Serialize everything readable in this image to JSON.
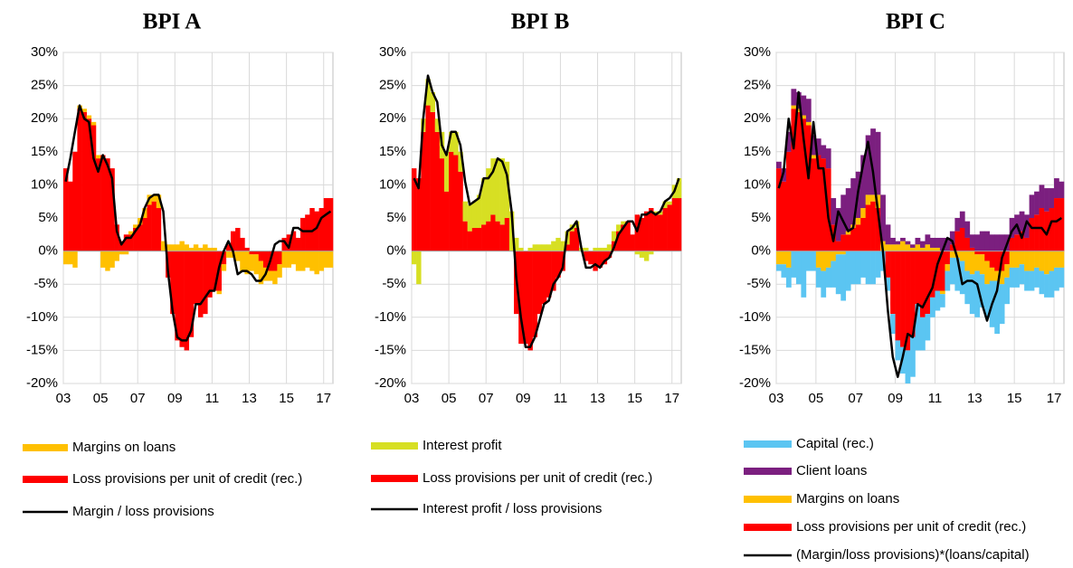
{
  "chart_data": [
    {
      "type": "bar",
      "title": "BPI A",
      "categories": [
        "03",
        null,
        null,
        null,
        null,
        null,
        null,
        null,
        "05",
        null,
        null,
        null,
        null,
        null,
        null,
        null,
        "07",
        null,
        null,
        null,
        null,
        null,
        null,
        null,
        "09",
        null,
        null,
        null,
        null,
        null,
        null,
        null,
        "11",
        null,
        null,
        null,
        null,
        null,
        null,
        null,
        "13",
        null,
        null,
        null,
        null,
        null,
        null,
        null,
        "15",
        null,
        null,
        null,
        null,
        null,
        null,
        null,
        "17",
        null
      ],
      "ylim": [
        -20,
        30
      ],
      "yticks": [
        {
          "value": -20,
          "label": "-20%"
        },
        {
          "value": -15,
          "label": "-15%"
        },
        {
          "value": -10,
          "label": "-10%"
        },
        {
          "value": -5,
          "label": "-5%"
        },
        {
          "value": 0,
          "label": "0%"
        },
        {
          "value": 5,
          "label": "5%"
        },
        {
          "value": 10,
          "label": "10%"
        },
        {
          "value": 15,
          "label": "15%"
        },
        {
          "value": 20,
          "label": "20%"
        },
        {
          "value": 25,
          "label": "25%"
        },
        {
          "value": 30,
          "label": "30%"
        }
      ],
      "grid": true,
      "series": [
        {
          "name": "Margins on loans",
          "color": "#ffc000",
          "values": [
            -2,
            -2,
            -2.5,
            0.5,
            0.5,
            0.5,
            0.5,
            0.5,
            -2.5,
            -3,
            -2.5,
            -1.5,
            -0.5,
            -0.5,
            0.5,
            0.5,
            1,
            1.5,
            1.5,
            1,
            2,
            1.5,
            1,
            1,
            1,
            1.5,
            1,
            0.5,
            1,
            0.5,
            1,
            0.5,
            0.5,
            -0.5,
            -1,
            -1,
            -1,
            -1.5,
            -3,
            -3.5,
            -2.5,
            -3,
            -3.5,
            -2,
            -1.5,
            -2,
            -2,
            -2.5,
            -2.5,
            -2,
            -3,
            -3,
            -2.5,
            -3,
            -3.5,
            -3,
            -2.5,
            -2.5
          ]
        },
        {
          "name": "Loss provisions per unit of credit (rec.)",
          "color": "#ff0000",
          "values": [
            12.5,
            10.5,
            15,
            21.5,
            21,
            20,
            19,
            14,
            14.5,
            14,
            12.5,
            4,
            1.5,
            2.5,
            2.5,
            3.5,
            4,
            5,
            7,
            7.5,
            6.5,
            0,
            -4,
            -9.5,
            -13.5,
            -14.5,
            -15,
            -13,
            -8,
            -10,
            -9.5,
            -7,
            -6,
            -6,
            -2,
            1,
            3,
            3.5,
            2,
            0.5,
            -0.5,
            -0.5,
            -1.5,
            -2.5,
            -3,
            -3,
            -2,
            2,
            2.5,
            3,
            2,
            5,
            5.5,
            6.5,
            6,
            6.5,
            8,
            8
          ]
        },
        {
          "name": "Margin / loss provisions",
          "type": "line",
          "color": "#000000",
          "values": [
            10.5,
            14,
            18,
            22,
            20,
            19.5,
            14,
            12,
            14.5,
            13,
            11,
            3,
            1,
            2,
            2,
            3,
            4,
            6.5,
            8,
            8.5,
            8.5,
            6,
            -3,
            -9,
            -13,
            -13.5,
            -13.5,
            -12,
            -8,
            -8,
            -7,
            -6,
            -6,
            -2.5,
            0,
            1.5,
            0,
            -3.5,
            -3,
            -3,
            -3.5,
            -4.5,
            -4.5,
            -3.5,
            -1.5,
            1,
            1.5,
            1.5,
            0.5,
            3.5,
            3.5,
            3,
            3,
            3,
            3.5,
            5,
            5.5,
            6
          ]
        }
      ]
    },
    {
      "type": "bar",
      "title": "BPI B",
      "categories": [
        "03",
        null,
        null,
        null,
        null,
        null,
        null,
        null,
        "05",
        null,
        null,
        null,
        null,
        null,
        null,
        null,
        "07",
        null,
        null,
        null,
        null,
        null,
        null,
        null,
        "09",
        null,
        null,
        null,
        null,
        null,
        null,
        null,
        "11",
        null,
        null,
        null,
        null,
        null,
        null,
        null,
        "13",
        null,
        null,
        null,
        null,
        null,
        null,
        null,
        "15",
        null,
        null,
        null,
        null,
        null,
        null,
        null,
        "17",
        null
      ],
      "ylim": [
        -20,
        30
      ],
      "yticks": [
        {
          "value": -20,
          "label": "-20%"
        },
        {
          "value": -15,
          "label": "-15%"
        },
        {
          "value": -10,
          "label": "-10%"
        },
        {
          "value": -5,
          "label": "-5%"
        },
        {
          "value": 0,
          "label": "0%"
        },
        {
          "value": 5,
          "label": "5%"
        },
        {
          "value": 10,
          "label": "10%"
        },
        {
          "value": 15,
          "label": "15%"
        },
        {
          "value": 20,
          "label": "20%"
        },
        {
          "value": 25,
          "label": "25%"
        },
        {
          "value": 30,
          "label": "30%"
        }
      ],
      "grid": true,
      "series": [
        {
          "name": "Interest profit",
          "color": "#d7df23",
          "values": [
            -2,
            -5,
            2,
            4,
            3,
            2,
            4,
            6,
            3,
            3.5,
            3,
            3,
            4,
            4,
            5,
            7,
            8,
            8.5,
            9.5,
            10,
            8.5,
            6,
            2,
            0.5,
            0,
            0.5,
            1,
            1,
            1,
            1,
            1.5,
            2,
            1.5,
            2,
            1,
            1,
            0.5,
            0.5,
            0,
            0.5,
            0.5,
            0.5,
            1,
            1.5,
            1,
            0.5,
            0,
            0,
            -0.5,
            -1,
            -1.5,
            -0.5,
            0.5,
            0.5,
            1,
            0.5,
            2,
            3
          ]
        },
        {
          "name": "Loss provisions per unit of credit (rec.)",
          "color": "#ff0000",
          "values": [
            12.5,
            11,
            18,
            22,
            21,
            18,
            14,
            9,
            15,
            14.5,
            12,
            4.5,
            3,
            3.5,
            3.5,
            4,
            4.5,
            5.5,
            4.5,
            4,
            5,
            0,
            -9.5,
            -14,
            -14,
            -15,
            -13,
            -9.5,
            -8,
            -7,
            -6,
            -4,
            -3,
            1,
            3,
            3.5,
            0,
            -1.5,
            -2,
            -3,
            -2.5,
            -2,
            -1,
            1.5,
            3,
            4,
            4.5,
            2.5,
            5.5,
            5,
            6,
            6.5,
            5.5,
            5.5,
            6.5,
            7,
            8,
            8
          ]
        },
        {
          "name": "Interest profit / loss provisions",
          "type": "line",
          "color": "#000000",
          "values": [
            11,
            9.5,
            20,
            26.5,
            24,
            22.5,
            16,
            14.5,
            18,
            18,
            16,
            10.5,
            7,
            7.5,
            8,
            11,
            11,
            12,
            14,
            13.5,
            11.5,
            6,
            -4,
            -10,
            -14.5,
            -14.5,
            -13,
            -10.5,
            -8,
            -7.5,
            -5,
            -4,
            -2.5,
            3,
            3.5,
            4.5,
            0.5,
            -2.5,
            -2.5,
            -2,
            -2.5,
            -1.5,
            -1,
            0.5,
            2.5,
            3.5,
            4.5,
            4.5,
            3,
            5.5,
            5.5,
            6,
            5.5,
            6,
            7.5,
            8,
            9,
            11
          ]
        }
      ]
    },
    {
      "type": "bar",
      "title": "BPI C",
      "categories": [
        "03",
        null,
        null,
        null,
        null,
        null,
        null,
        null,
        "05",
        null,
        null,
        null,
        null,
        null,
        null,
        null,
        "07",
        null,
        null,
        null,
        null,
        null,
        null,
        null,
        "09",
        null,
        null,
        null,
        null,
        null,
        null,
        null,
        "11",
        null,
        null,
        null,
        null,
        null,
        null,
        null,
        "13",
        null,
        null,
        null,
        null,
        null,
        null,
        null,
        "15",
        null,
        null,
        null,
        null,
        null,
        null,
        null,
        "17",
        null
      ],
      "ylim": [
        -20,
        30
      ],
      "yticks": [
        {
          "value": -20,
          "label": "-20%"
        },
        {
          "value": -15,
          "label": "-15%"
        },
        {
          "value": -10,
          "label": "-10%"
        },
        {
          "value": -5,
          "label": "-5%"
        },
        {
          "value": 0,
          "label": "0%"
        },
        {
          "value": 5,
          "label": "5%"
        },
        {
          "value": 10,
          "label": "10%"
        },
        {
          "value": 15,
          "label": "15%"
        },
        {
          "value": 20,
          "label": "20%"
        },
        {
          "value": 25,
          "label": "25%"
        },
        {
          "value": 30,
          "label": "30%"
        }
      ],
      "grid": true,
      "series": [
        {
          "name": "Capital (rec.)",
          "color": "#5bc5f2",
          "values": [
            -1,
            -2,
            -3,
            -4,
            -5,
            -7,
            -3,
            -3,
            -3,
            -4,
            -3,
            -4,
            -6,
            -7,
            -6,
            -5,
            -5,
            -4,
            -5,
            -5,
            -4,
            -3,
            -2,
            -3,
            -3,
            -4,
            -5,
            -6,
            -7,
            -5,
            -4,
            -3,
            -3,
            -2,
            -3,
            -4,
            -5,
            -5,
            -5,
            -6,
            -7,
            -5,
            -5,
            -7,
            -8,
            -6,
            -4,
            -3,
            -3,
            -3,
            -3,
            -3,
            -3,
            -3.5,
            -3.5,
            -4,
            -3.5,
            -3
          ]
        },
        {
          "name": "Client loans",
          "color": "#7b1f7f",
          "values": [
            1,
            2,
            3,
            2.5,
            2.5,
            3,
            3.5,
            3,
            2.5,
            2,
            3,
            4,
            5,
            6,
            6.5,
            7,
            7,
            8,
            9,
            10,
            9.5,
            7,
            3,
            1,
            0.5,
            0.5,
            0.5,
            0.5,
            1,
            1,
            1.5,
            1.5,
            1.5,
            2,
            2,
            2,
            2,
            2.5,
            2.5,
            2,
            2.5,
            3,
            3,
            2.5,
            2.5,
            2.5,
            2.5,
            3,
            3,
            3,
            3.5,
            3.5,
            3.5,
            3.5,
            3.5,
            3,
            3,
            2.5
          ]
        },
        {
          "name": "Margins on loans",
          "color": "#ffc000",
          "values": [
            -2,
            -2,
            -2.5,
            0.5,
            0.5,
            0.5,
            0.5,
            0.5,
            -2.5,
            -3,
            -2.5,
            -1.5,
            -0.5,
            -0.5,
            0.5,
            0.5,
            1,
            1.5,
            1.5,
            1,
            2,
            1.5,
            1,
            1,
            1,
            1.5,
            1,
            0.5,
            1,
            0.5,
            1,
            0.5,
            0.5,
            -0.5,
            -1,
            -1,
            -1,
            -1.5,
            -3,
            -3.5,
            -2.5,
            -3,
            -3.5,
            -2,
            -1.5,
            -2,
            -2,
            -2.5,
            -2.5,
            -2,
            -3,
            -3,
            -2.5,
            -3,
            -3.5,
            -3,
            -2.5,
            -2.5
          ]
        },
        {
          "name": "Loss provisions per unit of credit (rec.)",
          "color": "#ff0000",
          "values": [
            12.5,
            10.5,
            15,
            21.5,
            21,
            20,
            19,
            14,
            14.5,
            14,
            12.5,
            4,
            1.5,
            2.5,
            2.5,
            3.5,
            4,
            5,
            7,
            7.5,
            6.5,
            0,
            -4,
            -9.5,
            -13.5,
            -14.5,
            -15,
            -13,
            -8,
            -10,
            -9.5,
            -7,
            -6,
            -6,
            -2,
            1,
            3,
            3.5,
            2,
            0.5,
            -0.5,
            -0.5,
            -1.5,
            -2.5,
            -3,
            -3,
            -2,
            2,
            2.5,
            3,
            2,
            5,
            5.5,
            6.5,
            6,
            6.5,
            8,
            8
          ]
        },
        {
          "name": "(Margin/loss provisions)*(loans/capital)",
          "type": "line",
          "color": "#000000",
          "values": [
            9.5,
            12,
            20,
            15.5,
            24,
            17,
            11,
            19.5,
            12.5,
            12.5,
            5,
            1.5,
            6,
            4.5,
            3,
            3.5,
            9,
            13,
            16.5,
            12,
            6,
            0,
            -9,
            -16,
            -19,
            -16,
            -12.5,
            -13,
            -8,
            -8.5,
            -7,
            -5.5,
            -2,
            0,
            2,
            1.5,
            -1,
            -5,
            -4.5,
            -4.5,
            -5,
            -8,
            -10.5,
            -8,
            -6,
            -1,
            1,
            3,
            4,
            2,
            4.5,
            3.5,
            3.5,
            3.5,
            2.5,
            4.5,
            4.5,
            5
          ]
        }
      ]
    }
  ]
}
